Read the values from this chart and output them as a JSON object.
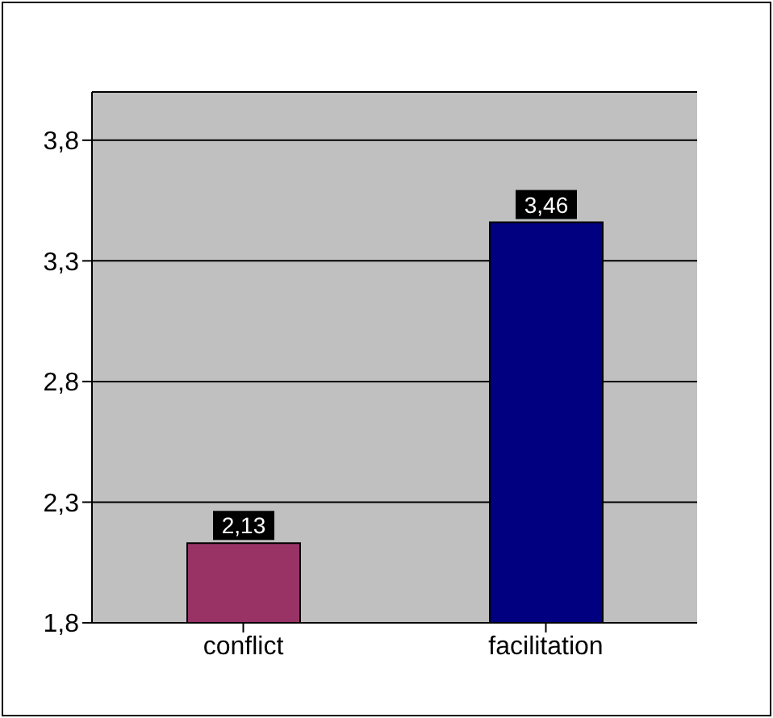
{
  "chart_data": {
    "type": "bar",
    "categories": [
      "conflict",
      "facilitation"
    ],
    "values": [
      2.13,
      3.46
    ],
    "colors": [
      "#993366",
      "#000080"
    ],
    "value_labels": [
      "2,13",
      "3,46"
    ],
    "ylim": [
      1.8,
      4.0
    ],
    "yticks": [
      {
        "value": 1.8,
        "label": "1,8"
      },
      {
        "value": 2.3,
        "label": "2,3"
      },
      {
        "value": 2.8,
        "label": "2,8"
      },
      {
        "value": 3.3,
        "label": "3,3"
      },
      {
        "value": 3.8,
        "label": "3,8"
      }
    ],
    "grid": "y",
    "legend": false
  }
}
